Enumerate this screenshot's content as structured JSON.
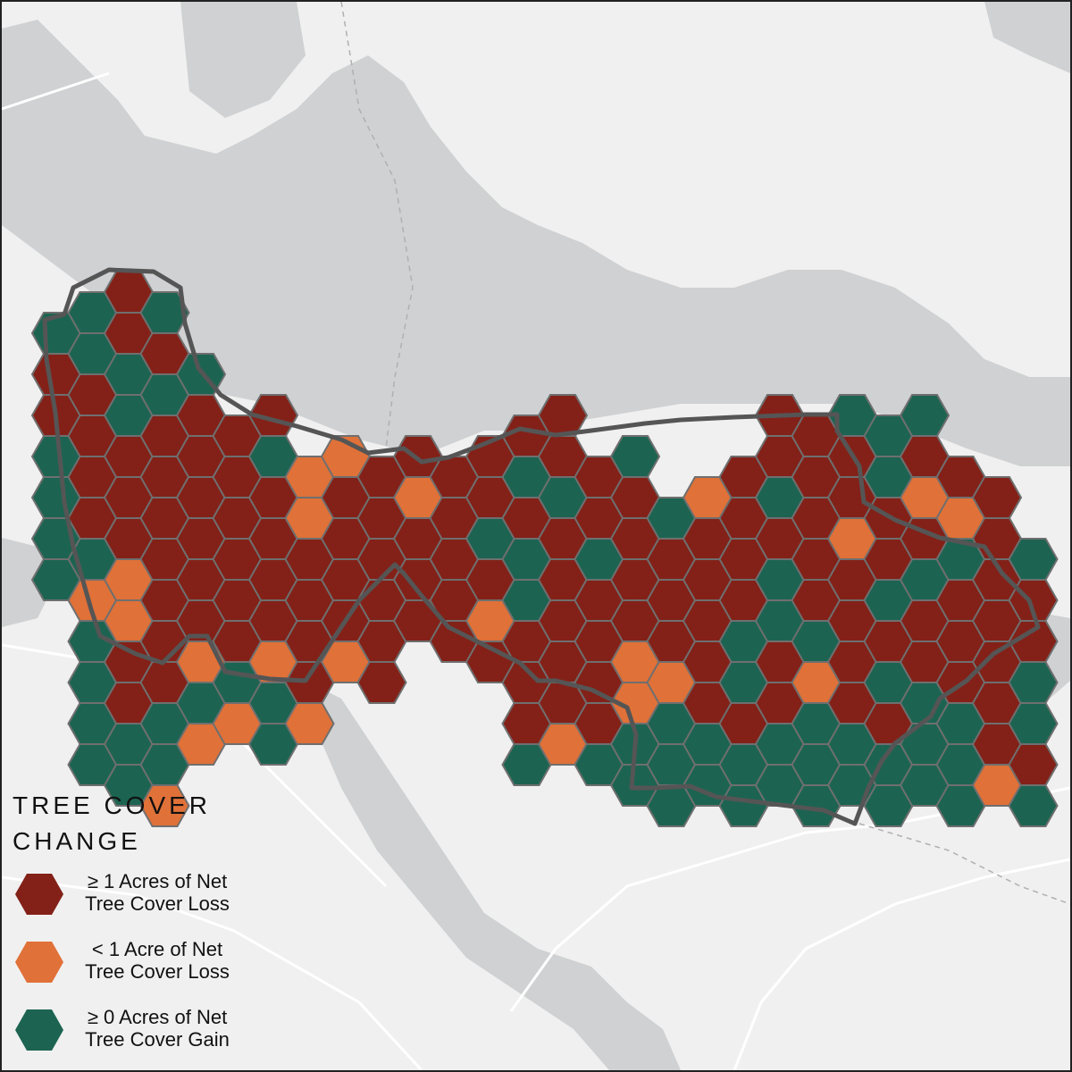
{
  "legend": {
    "title": "TREE COVER\nCHANGE",
    "items": [
      {
        "label": "≥ 1 Acres of Net\nTree Cover Loss",
        "color": "#832118"
      },
      {
        "label": "< 1 Acre of Net\nTree Cover Loss",
        "color": "#e07138"
      },
      {
        "label": "≥ 0 Acres of Net\nTree Cover Gain",
        "color": "#1c6451"
      }
    ]
  },
  "colors": {
    "land": "#f0f0f0",
    "water": "#cfd1d2",
    "roads": "#ffffff",
    "boundary": "#555555",
    "hex_stroke": "#6f6f6f"
  }
}
